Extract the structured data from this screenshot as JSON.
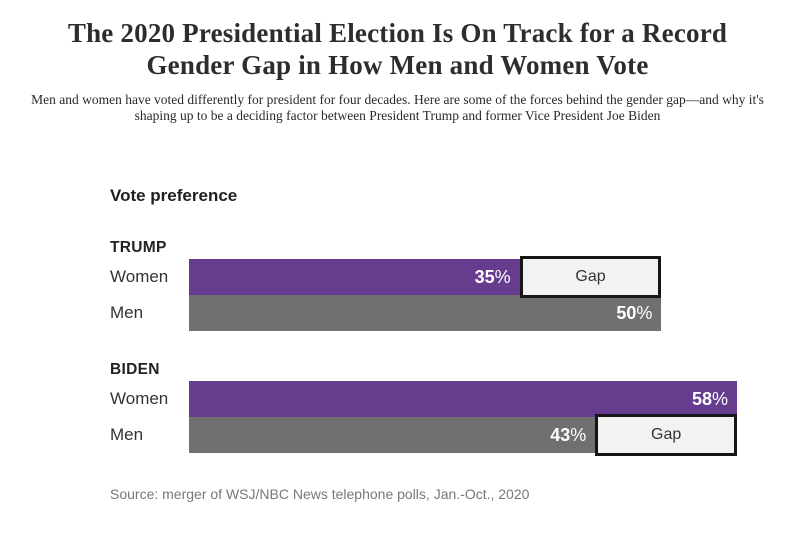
{
  "page": {
    "title_line1": "The 2020 Presidential Election Is On Track for a Record",
    "title_line2": "Gender Gap in How Men and Women Vote",
    "subtitle": "Men and women have voted differently for president for four decades. Here are some of the forces behind the gender gap—and why it's shaping up to be a deciding factor between President Trump and former Vice President Joe Biden",
    "source": "Source: merger of WSJ/NBC News telephone polls, Jan.-Oct., 2020"
  },
  "chart_data": {
    "type": "bar",
    "orientation": "horizontal",
    "title": "Vote preference",
    "unit": "%",
    "axis_max": 58,
    "grid": false,
    "legend": false,
    "categories": [
      "TRUMP Women",
      "TRUMP Men",
      "BIDEN Women",
      "BIDEN Men"
    ],
    "values": [
      35,
      50,
      58,
      43
    ],
    "groups": [
      {
        "name": "TRUMP",
        "rows": [
          {
            "label": "Women",
            "value": 35,
            "color": "#663c8e"
          },
          {
            "label": "Men",
            "value": 50,
            "color": "#707070"
          }
        ],
        "gap": {
          "label": "Gap",
          "from": 35,
          "to": 50,
          "on_row": "Women"
        }
      },
      {
        "name": "BIDEN",
        "rows": [
          {
            "label": "Women",
            "value": 58,
            "color": "#663c8e"
          },
          {
            "label": "Men",
            "value": 43,
            "color": "#707070"
          }
        ],
        "gap": {
          "label": "Gap",
          "from": 43,
          "to": 58,
          "on_row": "Men"
        }
      }
    ],
    "colors": {
      "women_bar": "#663c8e",
      "men_bar": "#707070",
      "gap_fill": "#f2f2f2",
      "gap_border": "#161616",
      "value_text": "#ffffff"
    }
  }
}
